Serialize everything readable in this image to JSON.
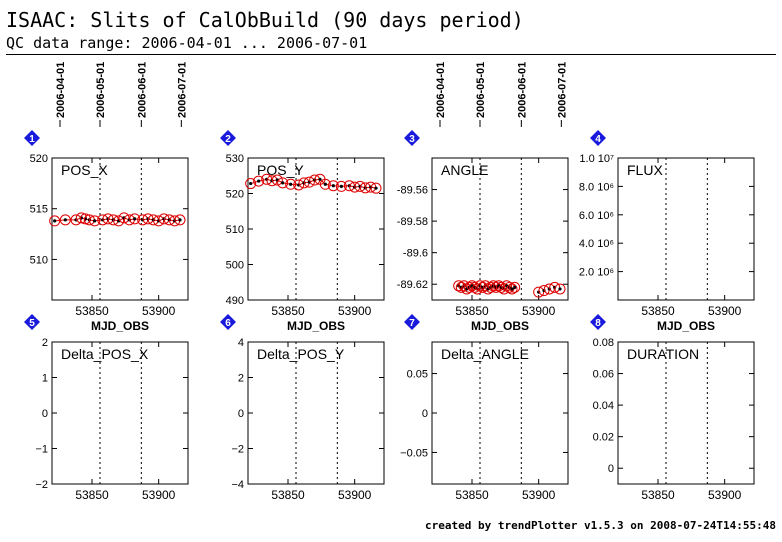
{
  "header": {
    "title": "ISAAC: Slits of CalObBuild (90 days period)",
    "subtitle": "QC data range: 2006-04-01 ... 2006-07-01"
  },
  "footer": "created by trendPlotter v1.5.3 on 2008-07-24T14:55:48",
  "colors": {
    "marker": "#dd0000",
    "badge": "#1a1adc",
    "axis": "#000000"
  },
  "date_axis": {
    "labels": [
      "2006-04-01",
      "2006-05-01",
      "2006-06-01",
      "2006-07-01"
    ],
    "mjd": [
      53826,
      53856,
      53887,
      53917
    ]
  },
  "x_axis": {
    "label": "MJD_OBS",
    "range": [
      53820,
      53922
    ],
    "ticks": [
      53850,
      53900
    ],
    "dotted_lines": [
      53856,
      53887
    ]
  },
  "chart_data": [
    {
      "index": "1",
      "type": "scatter",
      "title": "POS_X",
      "xlabel": "MJD_OBS",
      "ylim": [
        506,
        520
      ],
      "yticks": [
        510,
        515,
        520
      ],
      "ytick_labels": [
        "510",
        "515",
        "520"
      ],
      "x": [
        53822,
        53830,
        53838,
        53842,
        53845,
        53848,
        53852,
        53858,
        53862,
        53866,
        53870,
        53874,
        53878,
        53882,
        53888,
        53892,
        53896,
        53900,
        53904,
        53908,
        53912,
        53916
      ],
      "y": [
        513.8,
        513.9,
        513.9,
        514.1,
        514.0,
        513.9,
        513.8,
        513.9,
        514.0,
        513.9,
        513.8,
        514.1,
        513.9,
        514.0,
        513.9,
        514.0,
        513.9,
        513.8,
        514.0,
        513.9,
        513.8,
        513.9
      ]
    },
    {
      "index": "2",
      "type": "scatter",
      "title": "POS_Y",
      "xlabel": "MJD_OBS",
      "ylim": [
        490,
        530
      ],
      "yticks": [
        490,
        500,
        510,
        520,
        530
      ],
      "ytick_labels": [
        "490",
        "500",
        "510",
        "520",
        "530"
      ],
      "x": [
        53822,
        53828,
        53834,
        53838,
        53842,
        53846,
        53852,
        53858,
        53862,
        53866,
        53870,
        53874,
        53878,
        53884,
        53890,
        53896,
        53900,
        53904,
        53908,
        53912,
        53916
      ],
      "y": [
        522.8,
        523.5,
        524.0,
        523.6,
        523.8,
        523.0,
        522.6,
        522.4,
        523.0,
        523.2,
        523.8,
        524.0,
        522.6,
        522.2,
        522.0,
        522.2,
        521.8,
        522.0,
        521.6,
        521.8,
        521.5
      ]
    },
    {
      "index": "3",
      "type": "scatter",
      "title": "ANGLE",
      "xlabel": "MJD_OBS",
      "ylim": [
        -89.63,
        -89.54
      ],
      "yticks": [
        -89.56,
        -89.58,
        -89.6,
        -89.62
      ],
      "ytick_labels": [
        "-89.56",
        "-89.58",
        "-89.6",
        "-89.62"
      ],
      "x": [
        53840,
        53842,
        53844,
        53846,
        53848,
        53850,
        53852,
        53854,
        53856,
        53858,
        53860,
        53862,
        53864,
        53866,
        53868,
        53870,
        53872,
        53874,
        53876,
        53878,
        53880,
        53882,
        53900,
        53904,
        53908,
        53912,
        53916
      ],
      "y": [
        -89.621,
        -89.622,
        -89.621,
        -89.623,
        -89.622,
        -89.621,
        -89.622,
        -89.623,
        -89.621,
        -89.622,
        -89.621,
        -89.623,
        -89.622,
        -89.621,
        -89.622,
        -89.621,
        -89.622,
        -89.623,
        -89.621,
        -89.622,
        -89.623,
        -89.622,
        -89.625,
        -89.624,
        -89.623,
        -89.622,
        -89.623
      ]
    },
    {
      "index": "4",
      "type": "scatter",
      "title": "FLUX",
      "xlabel": "MJD_OBS",
      "ylim": [
        0,
        10000000
      ],
      "yticks": [
        2000000,
        4000000,
        6000000,
        8000000,
        10000000
      ],
      "ytick_labels": [
        "2.0 10⁶",
        "4.0 10⁶",
        "6.0 10⁶",
        "8.0 10⁶",
        "1.0 10⁷"
      ],
      "x": [],
      "y": []
    },
    {
      "index": "5",
      "type": "scatter",
      "title": "Delta_POS_X",
      "xlabel": "",
      "ylim": [
        -2,
        2
      ],
      "yticks": [
        -2,
        -1,
        0,
        1,
        2
      ],
      "ytick_labels": [
        "−2",
        "−1",
        "0",
        "1",
        "2"
      ],
      "x": [],
      "y": []
    },
    {
      "index": "6",
      "type": "scatter",
      "title": "Delta_POS_Y",
      "xlabel": "",
      "ylim": [
        -4,
        4
      ],
      "yticks": [
        -4,
        -2,
        0,
        2,
        4
      ],
      "ytick_labels": [
        "−4",
        "−2",
        "0",
        "2",
        "4"
      ],
      "x": [],
      "y": []
    },
    {
      "index": "7",
      "type": "scatter",
      "title": "Delta_ANGLE",
      "xlabel": "",
      "ylim": [
        -0.09,
        0.09
      ],
      "yticks": [
        -0.05,
        0,
        0.05
      ],
      "ytick_labels": [
        "−0.05",
        "0",
        "0.05"
      ],
      "x": [],
      "y": []
    },
    {
      "index": "8",
      "type": "scatter",
      "title": "DURATION",
      "xlabel": "",
      "ylim": [
        -0.01,
        0.08
      ],
      "yticks": [
        0,
        0.02,
        0.04,
        0.06,
        0.08
      ],
      "ytick_labels": [
        "0",
        "0.02",
        "0.04",
        "0.06",
        "0.08"
      ],
      "x": [],
      "y": []
    }
  ]
}
